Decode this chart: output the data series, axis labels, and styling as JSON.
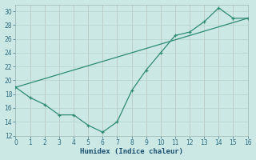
{
  "xlabel": "Humidex (Indice chaleur)",
  "x_wavy": [
    0,
    1,
    2,
    3,
    4,
    5,
    6,
    7,
    8,
    9,
    10,
    11,
    12,
    13,
    14,
    15,
    16
  ],
  "y_wavy": [
    19,
    17.5,
    16.5,
    15,
    15,
    13.5,
    12.5,
    14,
    18.5,
    21.5,
    24,
    26.5,
    27,
    28.5,
    30.5,
    29,
    29
  ],
  "xlim": [
    0,
    16
  ],
  "ylim": [
    12,
    31
  ],
  "yticks": [
    12,
    14,
    16,
    18,
    20,
    22,
    24,
    26,
    28,
    30
  ],
  "xticks": [
    0,
    1,
    2,
    3,
    4,
    5,
    6,
    7,
    8,
    9,
    10,
    11,
    12,
    13,
    14,
    15,
    16
  ],
  "line_color": "#2d8b74",
  "bg_color": "#cce8e4",
  "grid_color_minor": "#b8d8d0",
  "grid_color_major": "#c0a0a0",
  "tick_color": "#2e6b80",
  "label_color": "#1a5070"
}
